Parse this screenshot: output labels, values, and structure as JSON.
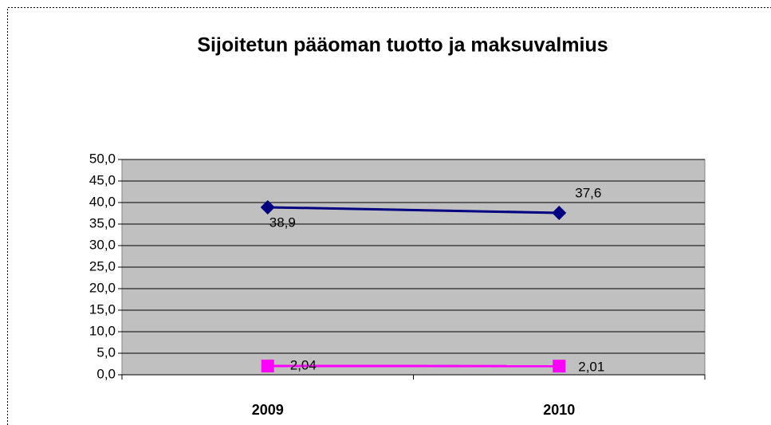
{
  "chart_data": {
    "type": "line",
    "title": "Sijoitetun pääoman tuotto ja maksuvalmius",
    "categories": [
      "2009",
      "2010"
    ],
    "series": [
      {
        "color": "#000080",
        "values": [
          38.9,
          37.6
        ],
        "value_labels": [
          "38,9",
          "37,6"
        ]
      },
      {
        "color": "#ff00ff",
        "values": [
          2.04,
          2.01
        ],
        "value_labels": [
          "2,04",
          "2,01"
        ]
      }
    ],
    "ylim": [
      0,
      50
    ],
    "yticks": [
      {
        "value": 0,
        "label": "0,0"
      },
      {
        "value": 5,
        "label": "5,0"
      },
      {
        "value": 10,
        "label": "10,0"
      },
      {
        "value": 15,
        "label": "15,0"
      },
      {
        "value": 20,
        "label": "20,0"
      },
      {
        "value": 25,
        "label": "25,0"
      },
      {
        "value": 30,
        "label": "30,0"
      },
      {
        "value": 35,
        "label": "35,0"
      },
      {
        "value": 40,
        "label": "40,0"
      },
      {
        "value": 45,
        "label": "45,0"
      },
      {
        "value": 50,
        "label": "50,0"
      }
    ],
    "grid": true
  }
}
